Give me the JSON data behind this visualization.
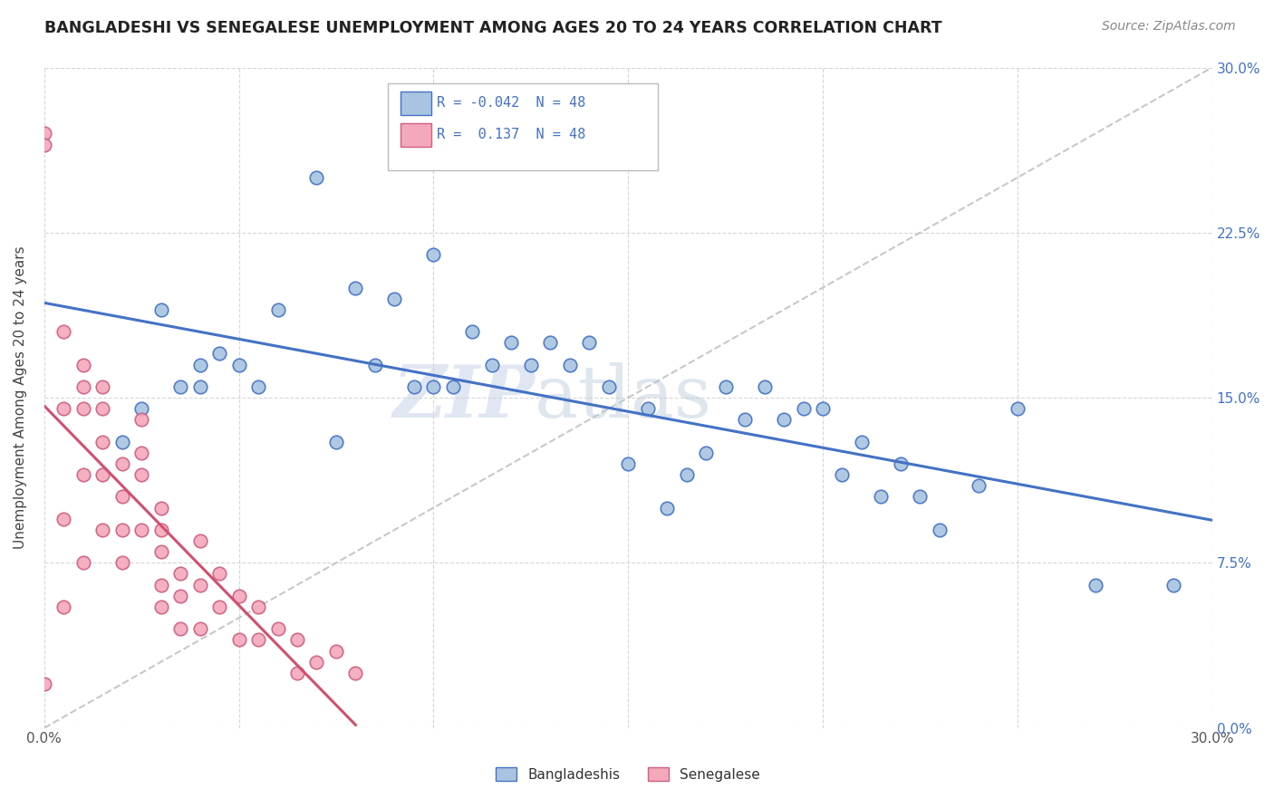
{
  "title": "BANGLADESHI VS SENEGALESE UNEMPLOYMENT AMONG AGES 20 TO 24 YEARS CORRELATION CHART",
  "source": "Source: ZipAtlas.com",
  "ylabel": "Unemployment Among Ages 20 to 24 years",
  "xlim": [
    0.0,
    0.3
  ],
  "ylim": [
    0.0,
    0.3
  ],
  "r_bangladeshi": "-0.042",
  "n_bangladeshi": "48",
  "r_senegalese": "0.137",
  "n_senegalese": "48",
  "color_bangladeshi": "#a8c4e0",
  "color_senegalese": "#f4a8bc",
  "line_color_bangladeshi": "#4472c4",
  "line_color_senegalese": "#d05070",
  "watermark_left": "ZIP",
  "watermark_right": "atlas",
  "bangladeshi_x": [
    0.02,
    0.025,
    0.03,
    0.035,
    0.04,
    0.04,
    0.045,
    0.05,
    0.055,
    0.06,
    0.07,
    0.075,
    0.08,
    0.085,
    0.09,
    0.095,
    0.1,
    0.1,
    0.105,
    0.11,
    0.115,
    0.12,
    0.125,
    0.13,
    0.135,
    0.14,
    0.145,
    0.15,
    0.155,
    0.16,
    0.165,
    0.17,
    0.175,
    0.18,
    0.185,
    0.19,
    0.195,
    0.2,
    0.205,
    0.21,
    0.215,
    0.22,
    0.225,
    0.23,
    0.24,
    0.25,
    0.27,
    0.29
  ],
  "bangladeshi_y": [
    0.13,
    0.145,
    0.19,
    0.155,
    0.155,
    0.165,
    0.17,
    0.165,
    0.155,
    0.19,
    0.25,
    0.13,
    0.2,
    0.165,
    0.195,
    0.155,
    0.155,
    0.215,
    0.155,
    0.18,
    0.165,
    0.175,
    0.165,
    0.175,
    0.165,
    0.175,
    0.155,
    0.12,
    0.145,
    0.1,
    0.115,
    0.125,
    0.155,
    0.14,
    0.155,
    0.14,
    0.145,
    0.145,
    0.115,
    0.13,
    0.105,
    0.12,
    0.105,
    0.09,
    0.11,
    0.145,
    0.065,
    0.065
  ],
  "senegalese_x": [
    0.0,
    0.0,
    0.0,
    0.005,
    0.005,
    0.005,
    0.005,
    0.01,
    0.01,
    0.01,
    0.01,
    0.01,
    0.015,
    0.015,
    0.015,
    0.015,
    0.015,
    0.02,
    0.02,
    0.02,
    0.02,
    0.025,
    0.025,
    0.025,
    0.025,
    0.03,
    0.03,
    0.03,
    0.03,
    0.03,
    0.035,
    0.035,
    0.035,
    0.04,
    0.04,
    0.04,
    0.045,
    0.045,
    0.05,
    0.05,
    0.055,
    0.055,
    0.06,
    0.065,
    0.065,
    0.07,
    0.075,
    0.08
  ],
  "senegalese_y": [
    0.27,
    0.265,
    0.02,
    0.18,
    0.145,
    0.095,
    0.055,
    0.165,
    0.155,
    0.145,
    0.115,
    0.075,
    0.155,
    0.145,
    0.13,
    0.115,
    0.09,
    0.12,
    0.105,
    0.09,
    0.075,
    0.14,
    0.125,
    0.115,
    0.09,
    0.1,
    0.09,
    0.08,
    0.065,
    0.055,
    0.07,
    0.06,
    0.045,
    0.085,
    0.065,
    0.045,
    0.07,
    0.055,
    0.06,
    0.04,
    0.055,
    0.04,
    0.045,
    0.04,
    0.025,
    0.03,
    0.035,
    0.025
  ]
}
